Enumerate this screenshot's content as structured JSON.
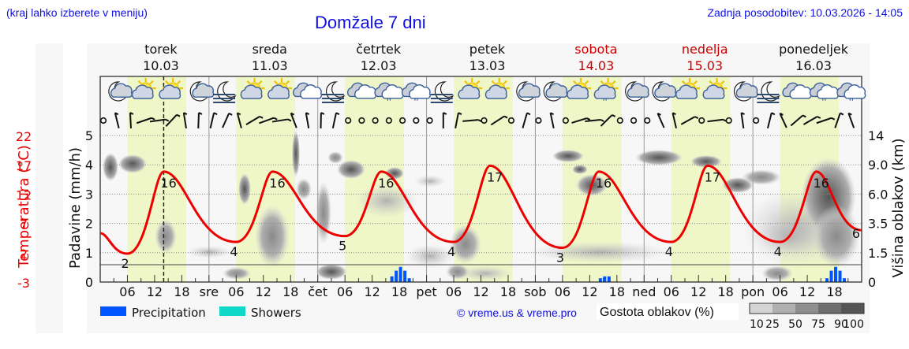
{
  "header": {
    "menu_hint": "(kraj lahko izberete v meniju)",
    "title": "Domžale 7 dni",
    "last_update": "Zadnja posodobitev: 10.03.2026 - 14:05"
  },
  "days": [
    {
      "name": "torek",
      "date": "10.03",
      "short": "",
      "weekend": false
    },
    {
      "name": "sreda",
      "date": "11.03",
      "short": "sre",
      "weekend": false
    },
    {
      "name": "četrtek",
      "date": "12.03",
      "short": "čet",
      "weekend": false
    },
    {
      "name": "petek",
      "date": "13.03",
      "short": "pet",
      "weekend": false
    },
    {
      "name": "sobota",
      "date": "14.03",
      "short": "sob",
      "weekend": true
    },
    {
      "name": "nedelja",
      "date": "15.03",
      "short": "ned",
      "weekend": true
    },
    {
      "name": "ponedeljek",
      "date": "16.03",
      "short": "pon",
      "weekend": false
    }
  ],
  "hour_ticks": [
    "06",
    "12",
    "18"
  ],
  "axes": {
    "temp_label": "Temperatura (°C)",
    "temp_ticks": [
      "22",
      "17",
      "12",
      "7",
      "2",
      "-3"
    ],
    "precip_label": "Padavine (mm/h)",
    "precip_ticks": [
      "5",
      "4",
      "3",
      "2",
      "1",
      "0"
    ],
    "cloud_label": "Višina oblakov (km)",
    "cloud_ticks": [
      "14",
      "9.0",
      "6.0",
      "3.5",
      "1.5",
      "0"
    ]
  },
  "legend": {
    "precipitation": "Precipitation",
    "showers": "Showers",
    "copyright": "© vreme.us & vreme.pro",
    "cloud_density_title": "Gostota oblakov (%)",
    "cloud_density_ticks": [
      "10",
      "25",
      "50",
      "75",
      "90",
      "100"
    ]
  },
  "colors": {
    "header_blue": "#1010e0",
    "temp_red": "#ee0000",
    "weekend_red": "#cc0000",
    "precip_blue": "#0055ff",
    "showers_teal": "#10d8c8",
    "day_band": "#eff7c8",
    "background": "#f7f7f7"
  },
  "chart_data": {
    "type": "line",
    "title": "Domžale 7 dni",
    "xlabel": "",
    "ylabel_left_outer": "Temperatura (°C)",
    "ylabel_left_inner": "Padavine (mm/h)",
    "ylabel_right": "Višina oblakov (km)",
    "x_range": [
      "10.03 00:00",
      "17.03 00:00"
    ],
    "temp_ylim": [
      -3,
      22
    ],
    "precip_ylim": [
      0,
      5
    ],
    "now_marker": "10.03 14:00",
    "series": [
      {
        "name": "Temperatura",
        "unit": "°C",
        "labeled_extremes": [
          {
            "time": "10.03 06",
            "value": 2,
            "kind": "min"
          },
          {
            "time": "10.03 14",
            "value": 16,
            "kind": "max"
          },
          {
            "time": "11.03 06",
            "value": 4,
            "kind": "min"
          },
          {
            "time": "11.03 14",
            "value": 16,
            "kind": "max"
          },
          {
            "time": "12.03 06",
            "value": 5,
            "kind": "min"
          },
          {
            "time": "12.03 14",
            "value": 16,
            "kind": "max"
          },
          {
            "time": "13.03 06",
            "value": 4,
            "kind": "min"
          },
          {
            "time": "13.03 14",
            "value": 17,
            "kind": "max"
          },
          {
            "time": "14.03 06",
            "value": 3,
            "kind": "min"
          },
          {
            "time": "14.03 14",
            "value": 16,
            "kind": "max"
          },
          {
            "time": "15.03 06",
            "value": 4,
            "kind": "min"
          },
          {
            "time": "15.03 14",
            "value": 17,
            "kind": "max"
          },
          {
            "time": "16.03 06",
            "value": 4,
            "kind": "min"
          },
          {
            "time": "16.03 14",
            "value": 16,
            "kind": "max"
          },
          {
            "time": "17.03 00",
            "value": 6,
            "kind": "end"
          }
        ]
      },
      {
        "name": "Precipitation",
        "unit": "mm/h",
        "events": [
          {
            "time": "12.03 16-20",
            "peak": 0.25
          },
          {
            "time": "14.03 14-16",
            "peak": 0.1
          },
          {
            "time": "16.03 16-20",
            "peak": 0.25
          }
        ]
      }
    ],
    "weather_icons": [
      "night-cloud",
      "sun-cloud",
      "sun-cloud",
      "night-cloud",
      "night-fog",
      "sun-cloud",
      "sun-cloud",
      "cloudy",
      "night-fog",
      "cloudy",
      "cloudy-drizzle",
      "cloudy-drizzle",
      "night-fog",
      "sun-cloud",
      "sun-cloud",
      "night-cloud",
      "night-cloud",
      "sun-cloud",
      "sun-cloud-drizzle",
      "night-cloud",
      "night-cloud",
      "sun-cloud",
      "sun-cloud",
      "night-cloud",
      "night-fog",
      "cloudy",
      "cloudy-drizzle",
      "cloudy-drizzle"
    ],
    "cloud_density_legend": [
      10,
      25,
      50,
      75,
      90,
      100
    ]
  }
}
